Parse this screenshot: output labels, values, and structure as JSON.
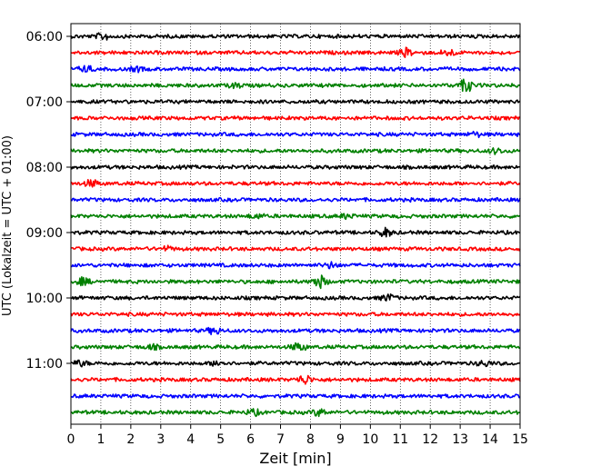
{
  "chart_data": {
    "type": "line",
    "title": "",
    "xlabel": "Zeit  [min]",
    "ylabel": "UTC (Lokalzeit = UTC + 01:00)",
    "x_range": [
      0,
      15
    ],
    "x_ticks": [
      "0",
      "1",
      "2",
      "3",
      "4",
      "5",
      "6",
      "7",
      "8",
      "9",
      "10",
      "11",
      "12",
      "13",
      "14",
      "15"
    ],
    "y_tick_labels": [
      "06:00",
      "07:00",
      "08:00",
      "09:00",
      "10:00",
      "11:00"
    ],
    "rows_per_hour": 4,
    "row_minutes": 15,
    "grid": "vertical dotted at each minute",
    "colors": [
      "#000000",
      "#ff0000",
      "#0000ff",
      "#008000"
    ],
    "traces": [
      {
        "time": "06:00",
        "color": "#000000",
        "events": [
          {
            "t": 1.1,
            "amp": 0.5
          }
        ]
      },
      {
        "time": "06:15",
        "color": "#ff0000",
        "events": [
          {
            "t": 11.2,
            "amp": 0.6
          },
          {
            "t": 12.6,
            "amp": 0.5
          }
        ]
      },
      {
        "time": "06:30",
        "color": "#0000ff",
        "events": [
          {
            "t": 0.5,
            "amp": 0.4
          },
          {
            "t": 2.2,
            "amp": 0.3
          }
        ]
      },
      {
        "time": "06:45",
        "color": "#008000",
        "events": [
          {
            "t": 5.5,
            "amp": 0.3
          },
          {
            "t": 13.2,
            "amp": 1.0
          }
        ]
      },
      {
        "time": "07:00",
        "color": "#000000",
        "events": []
      },
      {
        "time": "07:15",
        "color": "#ff0000",
        "events": []
      },
      {
        "time": "07:30",
        "color": "#0000ff",
        "events": [
          {
            "t": 13.5,
            "amp": 0.3
          }
        ]
      },
      {
        "time": "07:45",
        "color": "#008000",
        "events": [
          {
            "t": 14.2,
            "amp": 0.4
          }
        ]
      },
      {
        "time": "08:00",
        "color": "#000000",
        "events": []
      },
      {
        "time": "08:15",
        "color": "#ff0000",
        "events": [
          {
            "t": 0.7,
            "amp": 0.5
          }
        ]
      },
      {
        "time": "08:30",
        "color": "#0000ff",
        "events": []
      },
      {
        "time": "08:45",
        "color": "#008000",
        "events": [
          {
            "t": 6.2,
            "amp": 0.3
          },
          {
            "t": 9.2,
            "amp": 0.3
          }
        ]
      },
      {
        "time": "09:00",
        "color": "#000000",
        "events": [
          {
            "t": 10.5,
            "amp": 0.6
          }
        ]
      },
      {
        "time": "09:15",
        "color": "#ff0000",
        "events": [
          {
            "t": 3.2,
            "amp": 0.3
          }
        ]
      },
      {
        "time": "09:30",
        "color": "#0000ff",
        "events": [
          {
            "t": 8.7,
            "amp": 0.4
          }
        ]
      },
      {
        "time": "09:45",
        "color": "#008000",
        "events": [
          {
            "t": 0.4,
            "amp": 0.5
          },
          {
            "t": 8.3,
            "amp": 1.0
          }
        ]
      },
      {
        "time": "10:00",
        "color": "#000000",
        "events": [
          {
            "t": 10.6,
            "amp": 0.5
          }
        ]
      },
      {
        "time": "10:15",
        "color": "#ff0000",
        "events": []
      },
      {
        "time": "10:30",
        "color": "#0000ff",
        "events": [
          {
            "t": 4.8,
            "amp": 0.5
          }
        ]
      },
      {
        "time": "10:45",
        "color": "#008000",
        "events": [
          {
            "t": 7.6,
            "amp": 0.6
          },
          {
            "t": 2.7,
            "amp": 0.3
          }
        ]
      },
      {
        "time": "11:00",
        "color": "#000000",
        "events": [
          {
            "t": 0.3,
            "amp": 0.4
          },
          {
            "t": 4.9,
            "amp": 0.4
          },
          {
            "t": 13.8,
            "amp": 0.4
          }
        ]
      },
      {
        "time": "11:15",
        "color": "#ff0000",
        "events": [
          {
            "t": 7.8,
            "amp": 0.7
          }
        ]
      },
      {
        "time": "11:30",
        "color": "#0000ff",
        "events": []
      },
      {
        "time": "11:45",
        "color": "#008000",
        "events": [
          {
            "t": 6.1,
            "amp": 0.4
          },
          {
            "t": 8.3,
            "amp": 0.5
          }
        ]
      }
    ]
  }
}
